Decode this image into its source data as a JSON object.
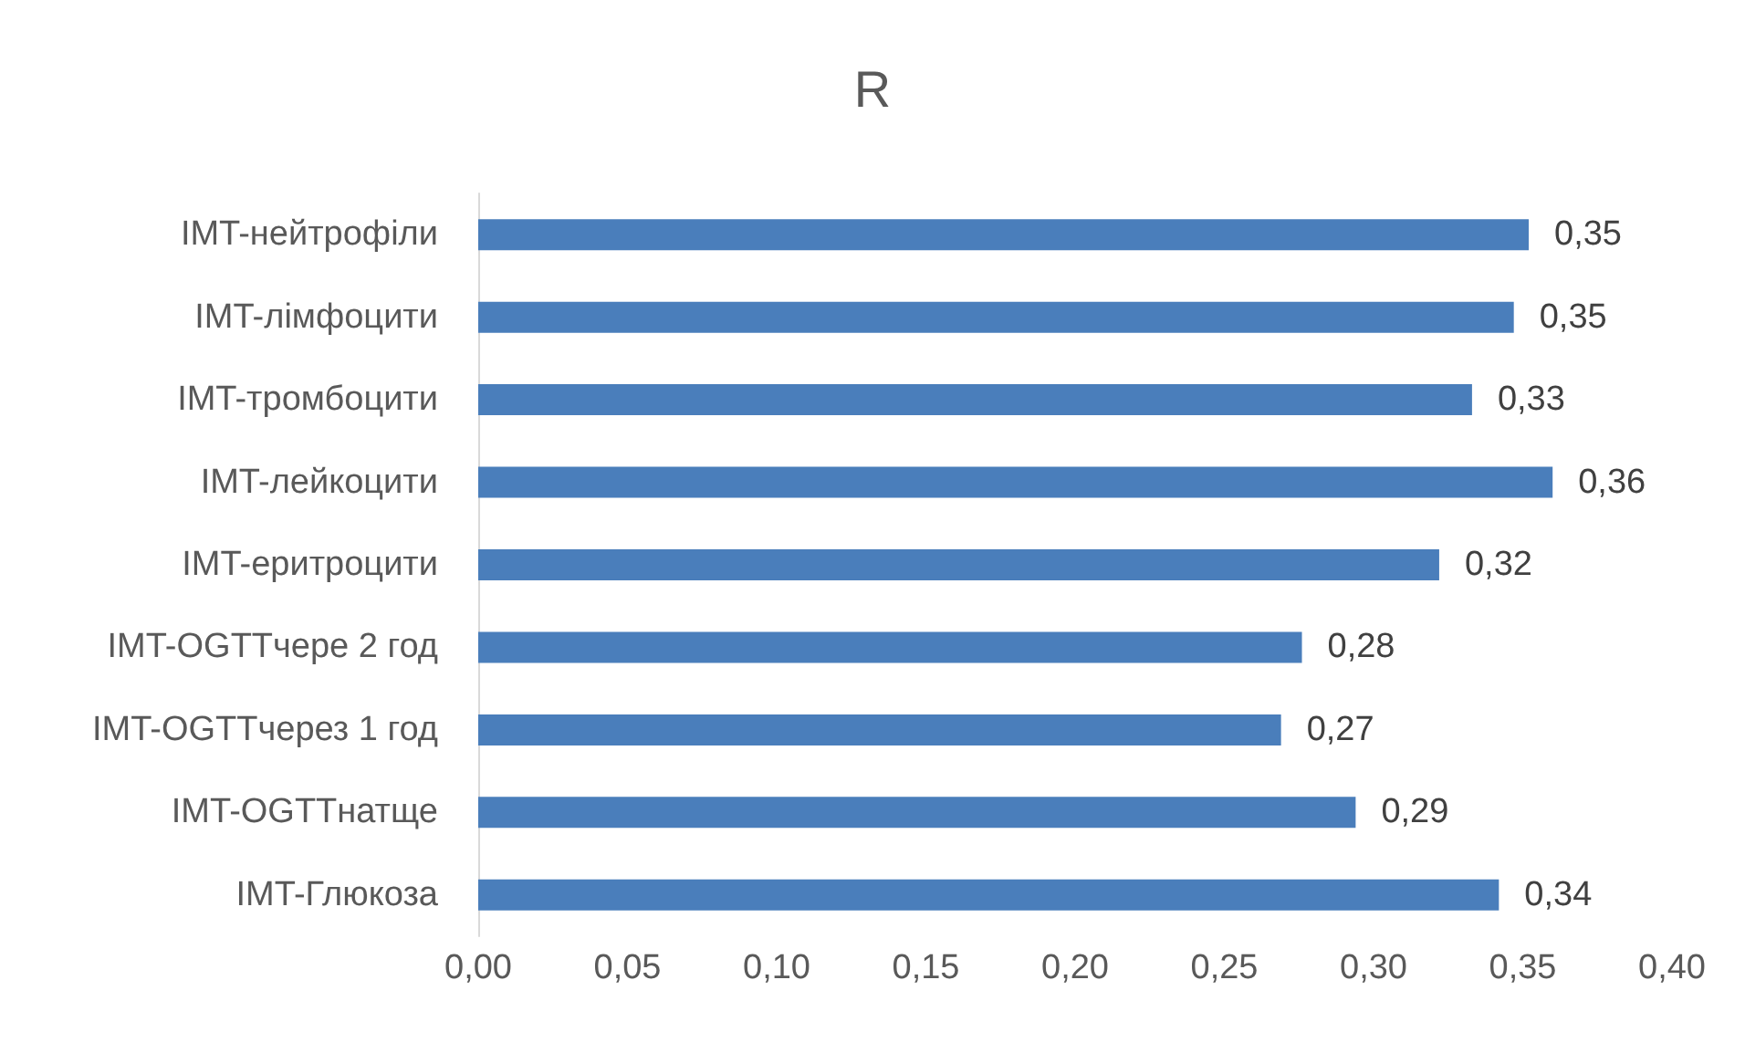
{
  "chart_data": {
    "type": "bar",
    "orientation": "horizontal",
    "title": "R",
    "categories": [
      "IMT-нейтрофіли",
      "IMT-лімфоцити",
      "IMT-тромбоцити",
      "IMT-лейкоцити",
      "IMT-еритроцити",
      "IMT-OGTTчере 2 год",
      "IMT-OGTTчерез 1 год",
      "IMT-OGTTнатще",
      "IMT-Глюкоза"
    ],
    "values": [
      0.352,
      0.347,
      0.333,
      0.36,
      0.322,
      0.276,
      0.269,
      0.294,
      0.342
    ],
    "value_labels": [
      "0,35",
      "0,35",
      "0,33",
      "0,36",
      "0,32",
      "0,28",
      "0,27",
      "0,29",
      "0,34"
    ],
    "color": "#4a7ebb",
    "xlim": [
      0,
      0.4
    ],
    "xticks": [
      {
        "value": 0,
        "label": "0,00"
      },
      {
        "value": 0.05,
        "label": "0,05"
      },
      {
        "value": 0.1,
        "label": "0,10"
      },
      {
        "value": 0.15,
        "label": "0,15"
      },
      {
        "value": 0.2,
        "label": "0,20"
      },
      {
        "value": 0.25,
        "label": "0,25"
      },
      {
        "value": 0.3,
        "label": "0,30"
      },
      {
        "value": 0.35,
        "label": "0,35"
      },
      {
        "value": 0.4,
        "label": "0,40"
      }
    ],
    "grid": false
  }
}
